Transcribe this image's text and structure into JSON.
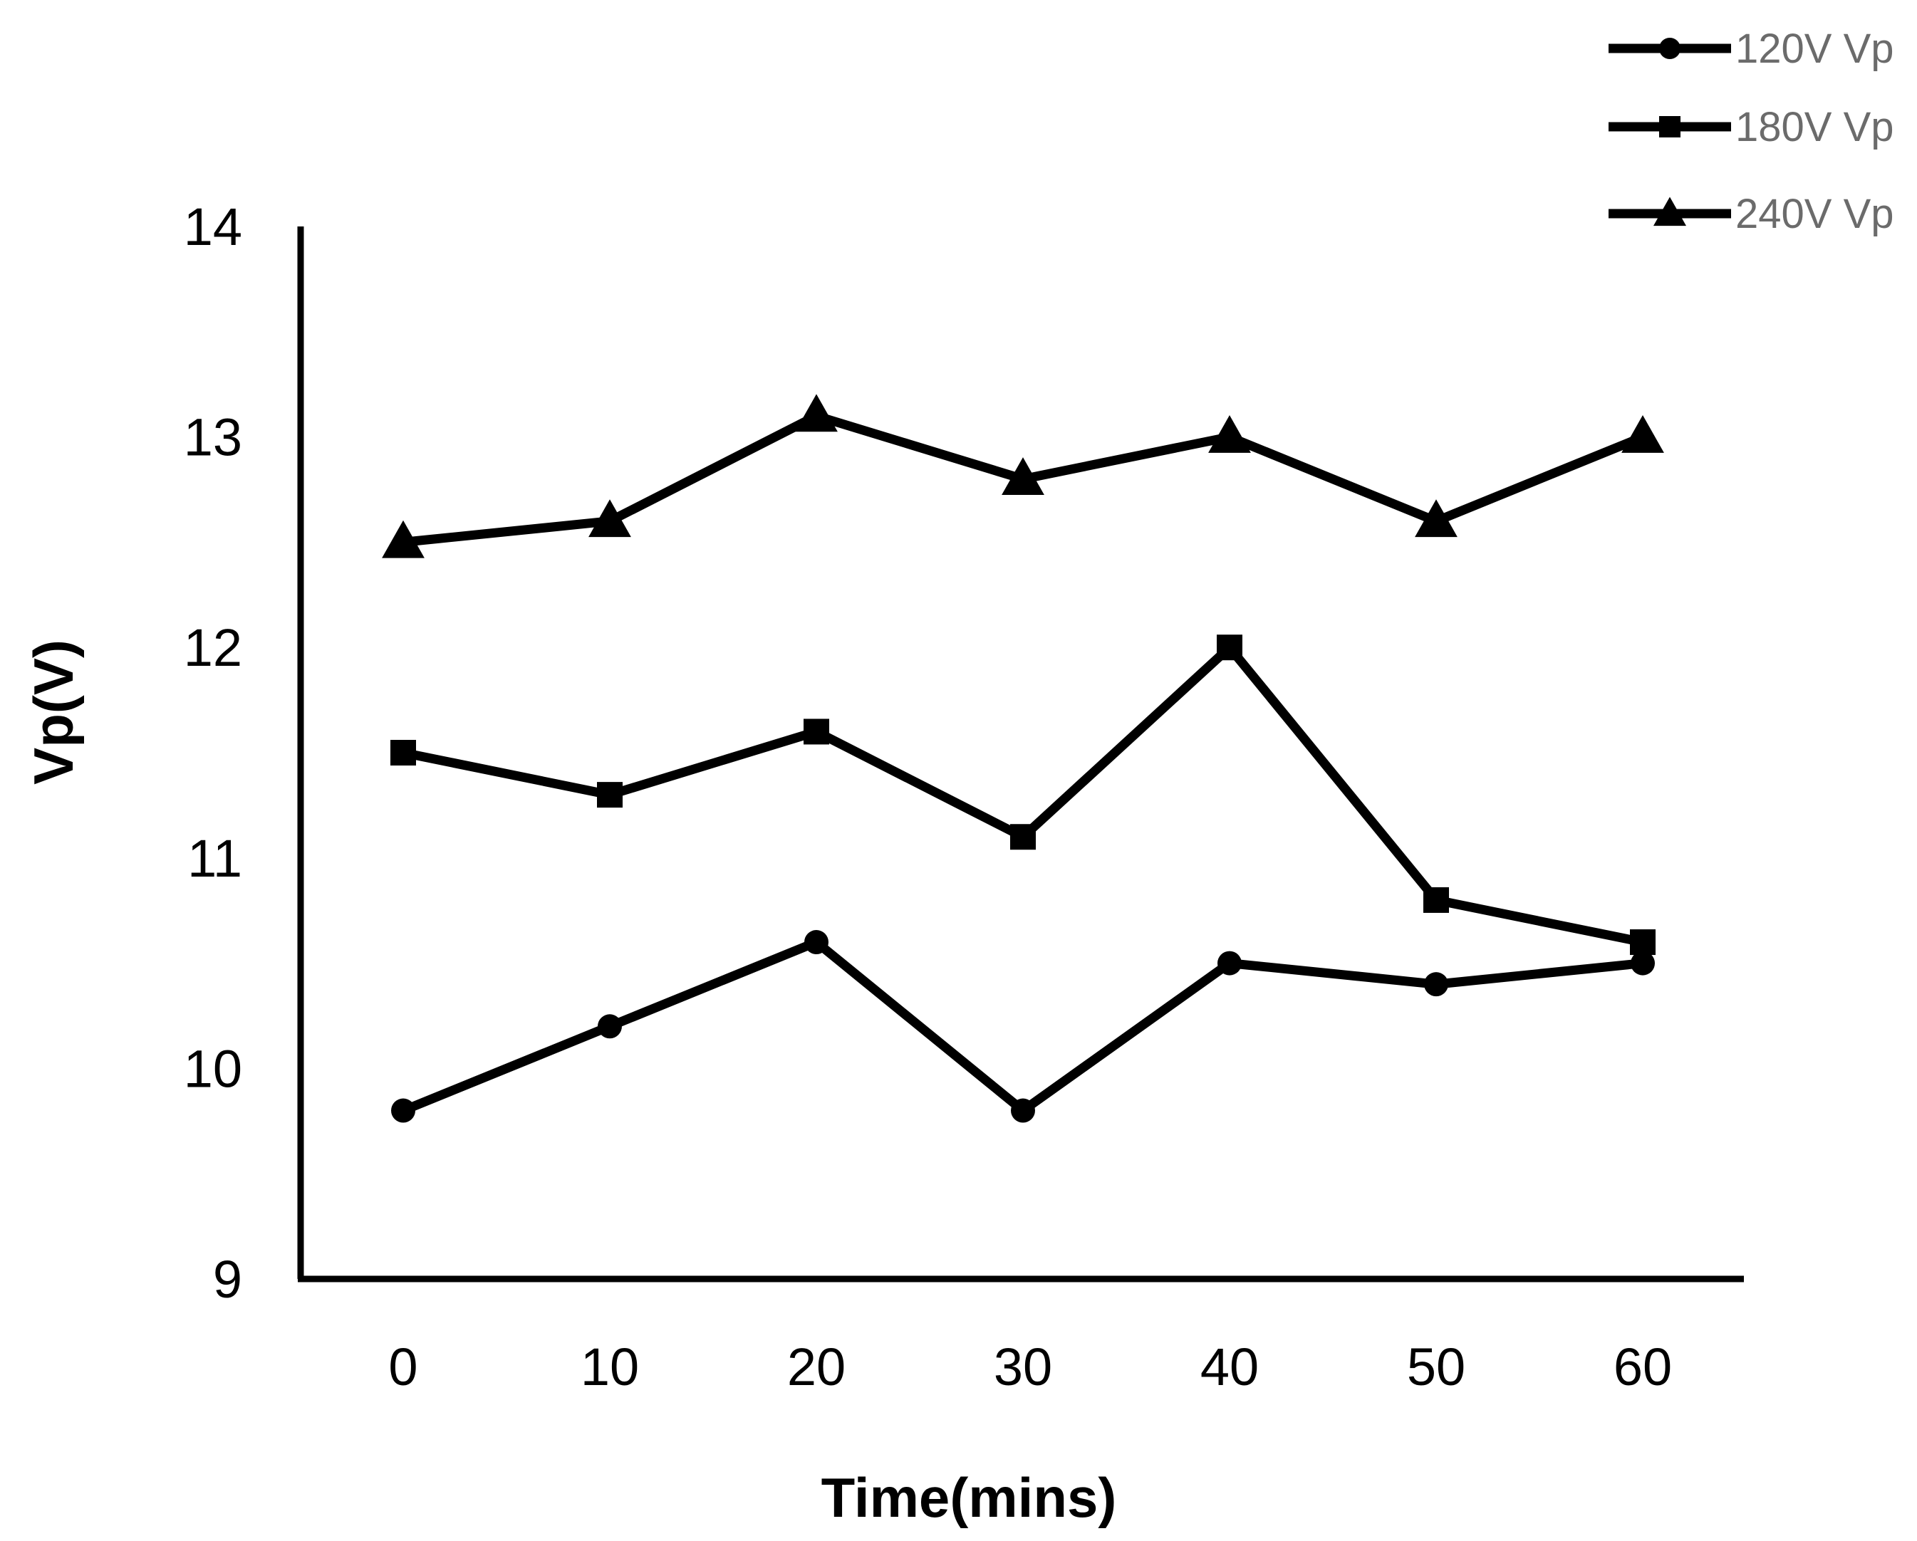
{
  "chart_data": {
    "type": "line",
    "title": "",
    "xlabel": "Time(mins)",
    "ylabel": "Vp(V)",
    "x": [
      0,
      10,
      20,
      30,
      40,
      50,
      60
    ],
    "x_tick_labels": [
      "0",
      "10",
      "20",
      "30",
      "40",
      "50",
      "60"
    ],
    "y_tick_labels": [
      "9",
      "10",
      "11",
      "12",
      "13",
      "14"
    ],
    "ylim": [
      9,
      14
    ],
    "grid": false,
    "legend_position": "top-right",
    "line_color": "#000000",
    "series": [
      {
        "name": "120V Vp",
        "marker": "circle",
        "values": [
          9.8,
          10.2,
          10.6,
          9.8,
          10.5,
          10.4,
          10.5
        ]
      },
      {
        "name": "180V Vp",
        "marker": "square",
        "values": [
          11.5,
          11.3,
          11.6,
          11.1,
          12.0,
          10.8,
          10.6
        ]
      },
      {
        "name": "240V Vp",
        "marker": "triangle",
        "values": [
          12.5,
          12.6,
          13.1,
          12.8,
          13.0,
          12.6,
          13.0
        ]
      }
    ]
  }
}
